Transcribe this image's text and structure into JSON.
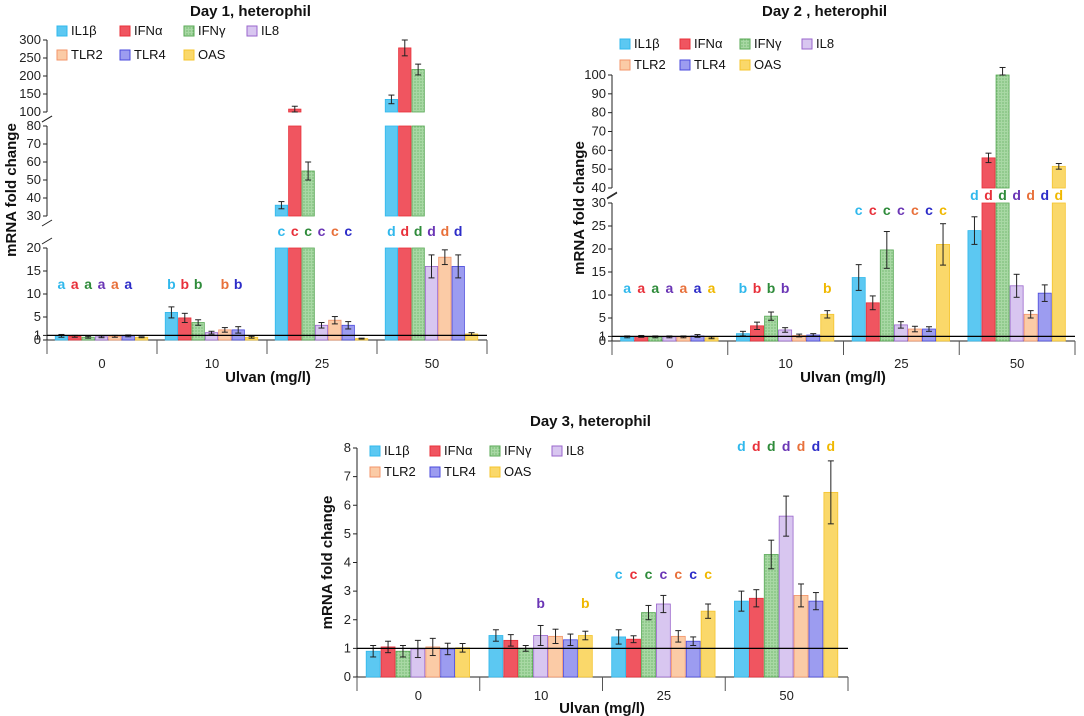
{
  "series_names": [
    "IL1β",
    "IFNα",
    "IFNγ",
    "IL8",
    "TLR2",
    "TLR4",
    "OAS"
  ],
  "series_colors": [
    "#30B8EC",
    "#E8303A",
    "#58A855",
    "#9A66CC",
    "#F3946A",
    "#4A4ADC",
    "#F5C42C"
  ],
  "series_fills": [
    "#5CC8F2",
    "#F05560",
    "#A8D8A4",
    "#D8C6F0",
    "#FBCBA6",
    "#9C9CF0",
    "#FAD86A"
  ],
  "sig_colors": {
    "a": [
      "#30B8EC",
      "#E8303A",
      "#2E8B3A",
      "#6A35B5",
      "#E8703A",
      "#2C2CC8",
      "#F0B800"
    ]
  },
  "chart_data": [
    {
      "id": "day1",
      "type": "bar",
      "title": "Day 1, heterophil",
      "xlabel": "Ulvan (mg/l)",
      "ylabel": "mRNA fold change",
      "categories": [
        "0",
        "10",
        "25",
        "50"
      ],
      "y_segments": [
        {
          "range": [
            0,
            20
          ],
          "ticks": [
            0,
            1,
            5,
            10,
            15,
            20
          ]
        },
        {
          "range": [
            30,
            80
          ],
          "ticks": [
            30,
            40,
            50,
            60,
            70,
            80
          ]
        },
        {
          "range": [
            100,
            300
          ],
          "ticks": [
            100,
            150,
            200,
            250,
            300
          ]
        }
      ],
      "baseline": 1,
      "series": [
        {
          "name": "IL1β",
          "values": [
            0.9,
            6.0,
            36,
            135
          ],
          "errors": [
            0.3,
            1.2,
            2,
            12
          ]
        },
        {
          "name": "IFNα",
          "values": [
            0.8,
            4.8,
            108,
            278
          ],
          "errors": [
            0.2,
            1.0,
            8,
            22
          ]
        },
        {
          "name": "IFNγ",
          "values": [
            0.6,
            3.8,
            55,
            218
          ],
          "errors": [
            0.2,
            0.6,
            5,
            15
          ]
        },
        {
          "name": "IL8",
          "values": [
            0.7,
            1.6,
            3.2,
            16.0
          ],
          "errors": [
            0.2,
            0.3,
            0.6,
            2.5
          ]
        },
        {
          "name": "TLR2",
          "values": [
            0.8,
            2.2,
            4.3,
            18.0
          ],
          "errors": [
            0.2,
            0.5,
            0.8,
            1.6
          ]
        },
        {
          "name": "TLR4",
          "values": [
            0.9,
            2.2,
            3.2,
            16.0
          ],
          "errors": [
            0.2,
            0.7,
            0.8,
            2.5
          ]
        },
        {
          "name": "OAS",
          "values": [
            0.6,
            0.6,
            0.3,
            1.3
          ],
          "errors": [
            0.1,
            0.2,
            0.1,
            0.3
          ]
        }
      ],
      "significance": [
        [
          "a",
          "a",
          "a",
          "a",
          "a",
          "a",
          ""
        ],
        [
          "b",
          "b",
          "b",
          "",
          "b",
          "b",
          ""
        ],
        [
          "c",
          "c",
          "c",
          "c",
          "c",
          "c",
          ""
        ],
        [
          "d",
          "d",
          "d",
          "d",
          "d",
          "d",
          ""
        ]
      ],
      "legend": "top-left"
    },
    {
      "id": "day2",
      "type": "bar",
      "title": "Day 2 , heterophil",
      "xlabel": "Ulvan (mg/l)",
      "ylabel": "mRNA fold change",
      "categories": [
        "0",
        "10",
        "25",
        "50"
      ],
      "y_segments": [
        {
          "range": [
            0,
            30
          ],
          "ticks": [
            0,
            1,
            5,
            10,
            15,
            20,
            25,
            30
          ]
        },
        {
          "range": [
            40,
            100
          ],
          "ticks": [
            40,
            50,
            60,
            70,
            80,
            90,
            100
          ]
        }
      ],
      "baseline": 1,
      "series": [
        {
          "name": "IL1β",
          "values": [
            0.9,
            1.6,
            13.8,
            24.0
          ],
          "errors": [
            0.2,
            0.5,
            2.8,
            3.0
          ]
        },
        {
          "name": "IFNα",
          "values": [
            1.0,
            3.3,
            8.3,
            56
          ],
          "errors": [
            0.2,
            0.8,
            1.5,
            2.5
          ]
        },
        {
          "name": "IFNγ",
          "values": [
            0.9,
            5.4,
            19.8,
            102
          ],
          "errors": [
            0.2,
            0.9,
            4.0,
            2.0
          ]
        },
        {
          "name": "IL8",
          "values": [
            0.9,
            2.4,
            3.5,
            12.0
          ],
          "errors": [
            0.2,
            0.5,
            0.7,
            2.5
          ]
        },
        {
          "name": "TLR2",
          "values": [
            0.9,
            1.2,
            2.6,
            5.8
          ],
          "errors": [
            0.2,
            0.3,
            0.6,
            0.8
          ]
        },
        {
          "name": "TLR4",
          "values": [
            1.1,
            1.3,
            2.6,
            10.4
          ],
          "errors": [
            0.3,
            0.3,
            0.5,
            1.8
          ]
        },
        {
          "name": "OAS",
          "values": [
            0.7,
            5.8,
            21.0,
            51.5
          ],
          "errors": [
            0.2,
            0.8,
            4.5,
            1.5
          ]
        }
      ],
      "significance": [
        [
          "a",
          "a",
          "a",
          "a",
          "a",
          "a",
          "a"
        ],
        [
          "b",
          "b",
          "b",
          "b",
          "",
          "",
          "b"
        ],
        [
          "c",
          "c",
          "c",
          "c",
          "c",
          "c",
          "c"
        ],
        [
          "d",
          "d",
          "d",
          "d",
          "d",
          "d",
          "d"
        ]
      ],
      "legend": "top-left"
    },
    {
      "id": "day3",
      "type": "bar",
      "title": "Day 3, heterophil",
      "xlabel": "Ulvan (mg/l)",
      "ylabel": "mRNA fold change",
      "categories": [
        "0",
        "10",
        "25",
        "50"
      ],
      "y_segments": [
        {
          "range": [
            0,
            8
          ],
          "ticks": [
            0,
            1,
            2,
            3,
            4,
            5,
            6,
            7,
            8
          ]
        }
      ],
      "baseline": 1,
      "series": [
        {
          "name": "IL1β",
          "values": [
            0.9,
            1.45,
            1.4,
            2.65
          ],
          "errors": [
            0.2,
            0.2,
            0.25,
            0.35
          ]
        },
        {
          "name": "IFNα",
          "values": [
            1.05,
            1.28,
            1.32,
            2.75
          ],
          "errors": [
            0.2,
            0.2,
            0.12,
            0.3
          ]
        },
        {
          "name": "IFNγ",
          "values": [
            0.9,
            1.0,
            2.25,
            4.28
          ],
          "errors": [
            0.2,
            0.1,
            0.25,
            0.5
          ]
        },
        {
          "name": "IL8",
          "values": [
            0.98,
            1.45,
            2.55,
            5.62
          ],
          "errors": [
            0.3,
            0.35,
            0.3,
            0.7
          ]
        },
        {
          "name": "TLR2",
          "values": [
            1.05,
            1.42,
            1.42,
            2.85
          ],
          "errors": [
            0.3,
            0.25,
            0.2,
            0.4
          ]
        },
        {
          "name": "TLR4",
          "values": [
            0.98,
            1.3,
            1.25,
            2.65
          ],
          "errors": [
            0.2,
            0.2,
            0.15,
            0.3
          ]
        },
        {
          "name": "OAS",
          "values": [
            1.02,
            1.45,
            2.3,
            6.45
          ],
          "errors": [
            0.15,
            0.15,
            0.25,
            1.1
          ]
        }
      ],
      "significance": [
        [
          "",
          "",
          "",
          "",
          "",
          "",
          ""
        ],
        [
          "",
          "",
          "",
          "b",
          "",
          "",
          "b"
        ],
        [
          "c",
          "c",
          "c",
          "c",
          "c",
          "c",
          "c"
        ],
        [
          "d",
          "d",
          "d",
          "d",
          "d",
          "d",
          "d"
        ]
      ],
      "legend": "top-left"
    }
  ]
}
